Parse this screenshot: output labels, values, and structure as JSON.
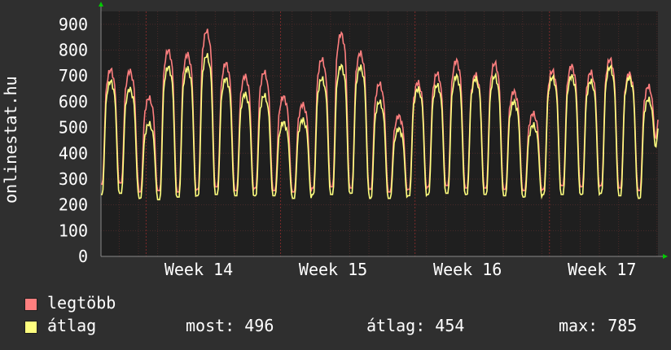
{
  "chart_data": {
    "type": "line",
    "ylabel": "onlinestat.hu",
    "yticks": [
      0,
      100,
      200,
      300,
      400,
      500,
      600,
      700,
      800,
      900
    ],
    "ylim": [
      0,
      950
    ],
    "x_tick_labels": [
      "Week 14",
      "Week 15",
      "Week 16",
      "Week 17"
    ],
    "grid": true,
    "days": 29,
    "daily_peak_max": [
      725,
      720,
      615,
      800,
      785,
      875,
      750,
      700,
      715,
      620,
      590,
      765,
      865,
      790,
      670,
      545,
      675,
      710,
      760,
      705,
      750,
      640,
      555,
      720,
      740,
      715,
      765,
      710,
      660
    ],
    "daily_peak_avg": [
      680,
      650,
      515,
      735,
      730,
      780,
      690,
      630,
      625,
      520,
      530,
      690,
      740,
      735,
      600,
      495,
      650,
      665,
      700,
      690,
      700,
      600,
      510,
      695,
      700,
      680,
      735,
      695,
      610
    ],
    "daily_trough_max": [
      280,
      285,
      250,
      255,
      250,
      260,
      270,
      255,
      265,
      255,
      250,
      265,
      270,
      265,
      260,
      250,
      260,
      270,
      275,
      265,
      265,
      260,
      255,
      260,
      275,
      270,
      275,
      265,
      255
    ],
    "daily_trough_avg": [
      240,
      245,
      225,
      220,
      230,
      235,
      240,
      235,
      235,
      235,
      225,
      240,
      240,
      245,
      225,
      225,
      235,
      240,
      245,
      240,
      240,
      235,
      230,
      240,
      240,
      240,
      245,
      235,
      225
    ],
    "final_value_max": 530,
    "final_value_avg": 496,
    "series": [
      {
        "name": "legtöbb",
        "color": "#ff7f7f"
      },
      {
        "name": "átlag",
        "color": "#ffff7f"
      }
    ]
  },
  "colors": {
    "background": "#2f2f2f",
    "plot_background": "#1f1f1f",
    "grid": "#4a2a2a",
    "axis": "#888888",
    "arrow": "#00cc00"
  },
  "legend": {
    "max_label": "legtöbb",
    "avg_label": "átlag",
    "most": "most: 496",
    "atlag": "átlag: 454",
    "max": "max: 785"
  }
}
